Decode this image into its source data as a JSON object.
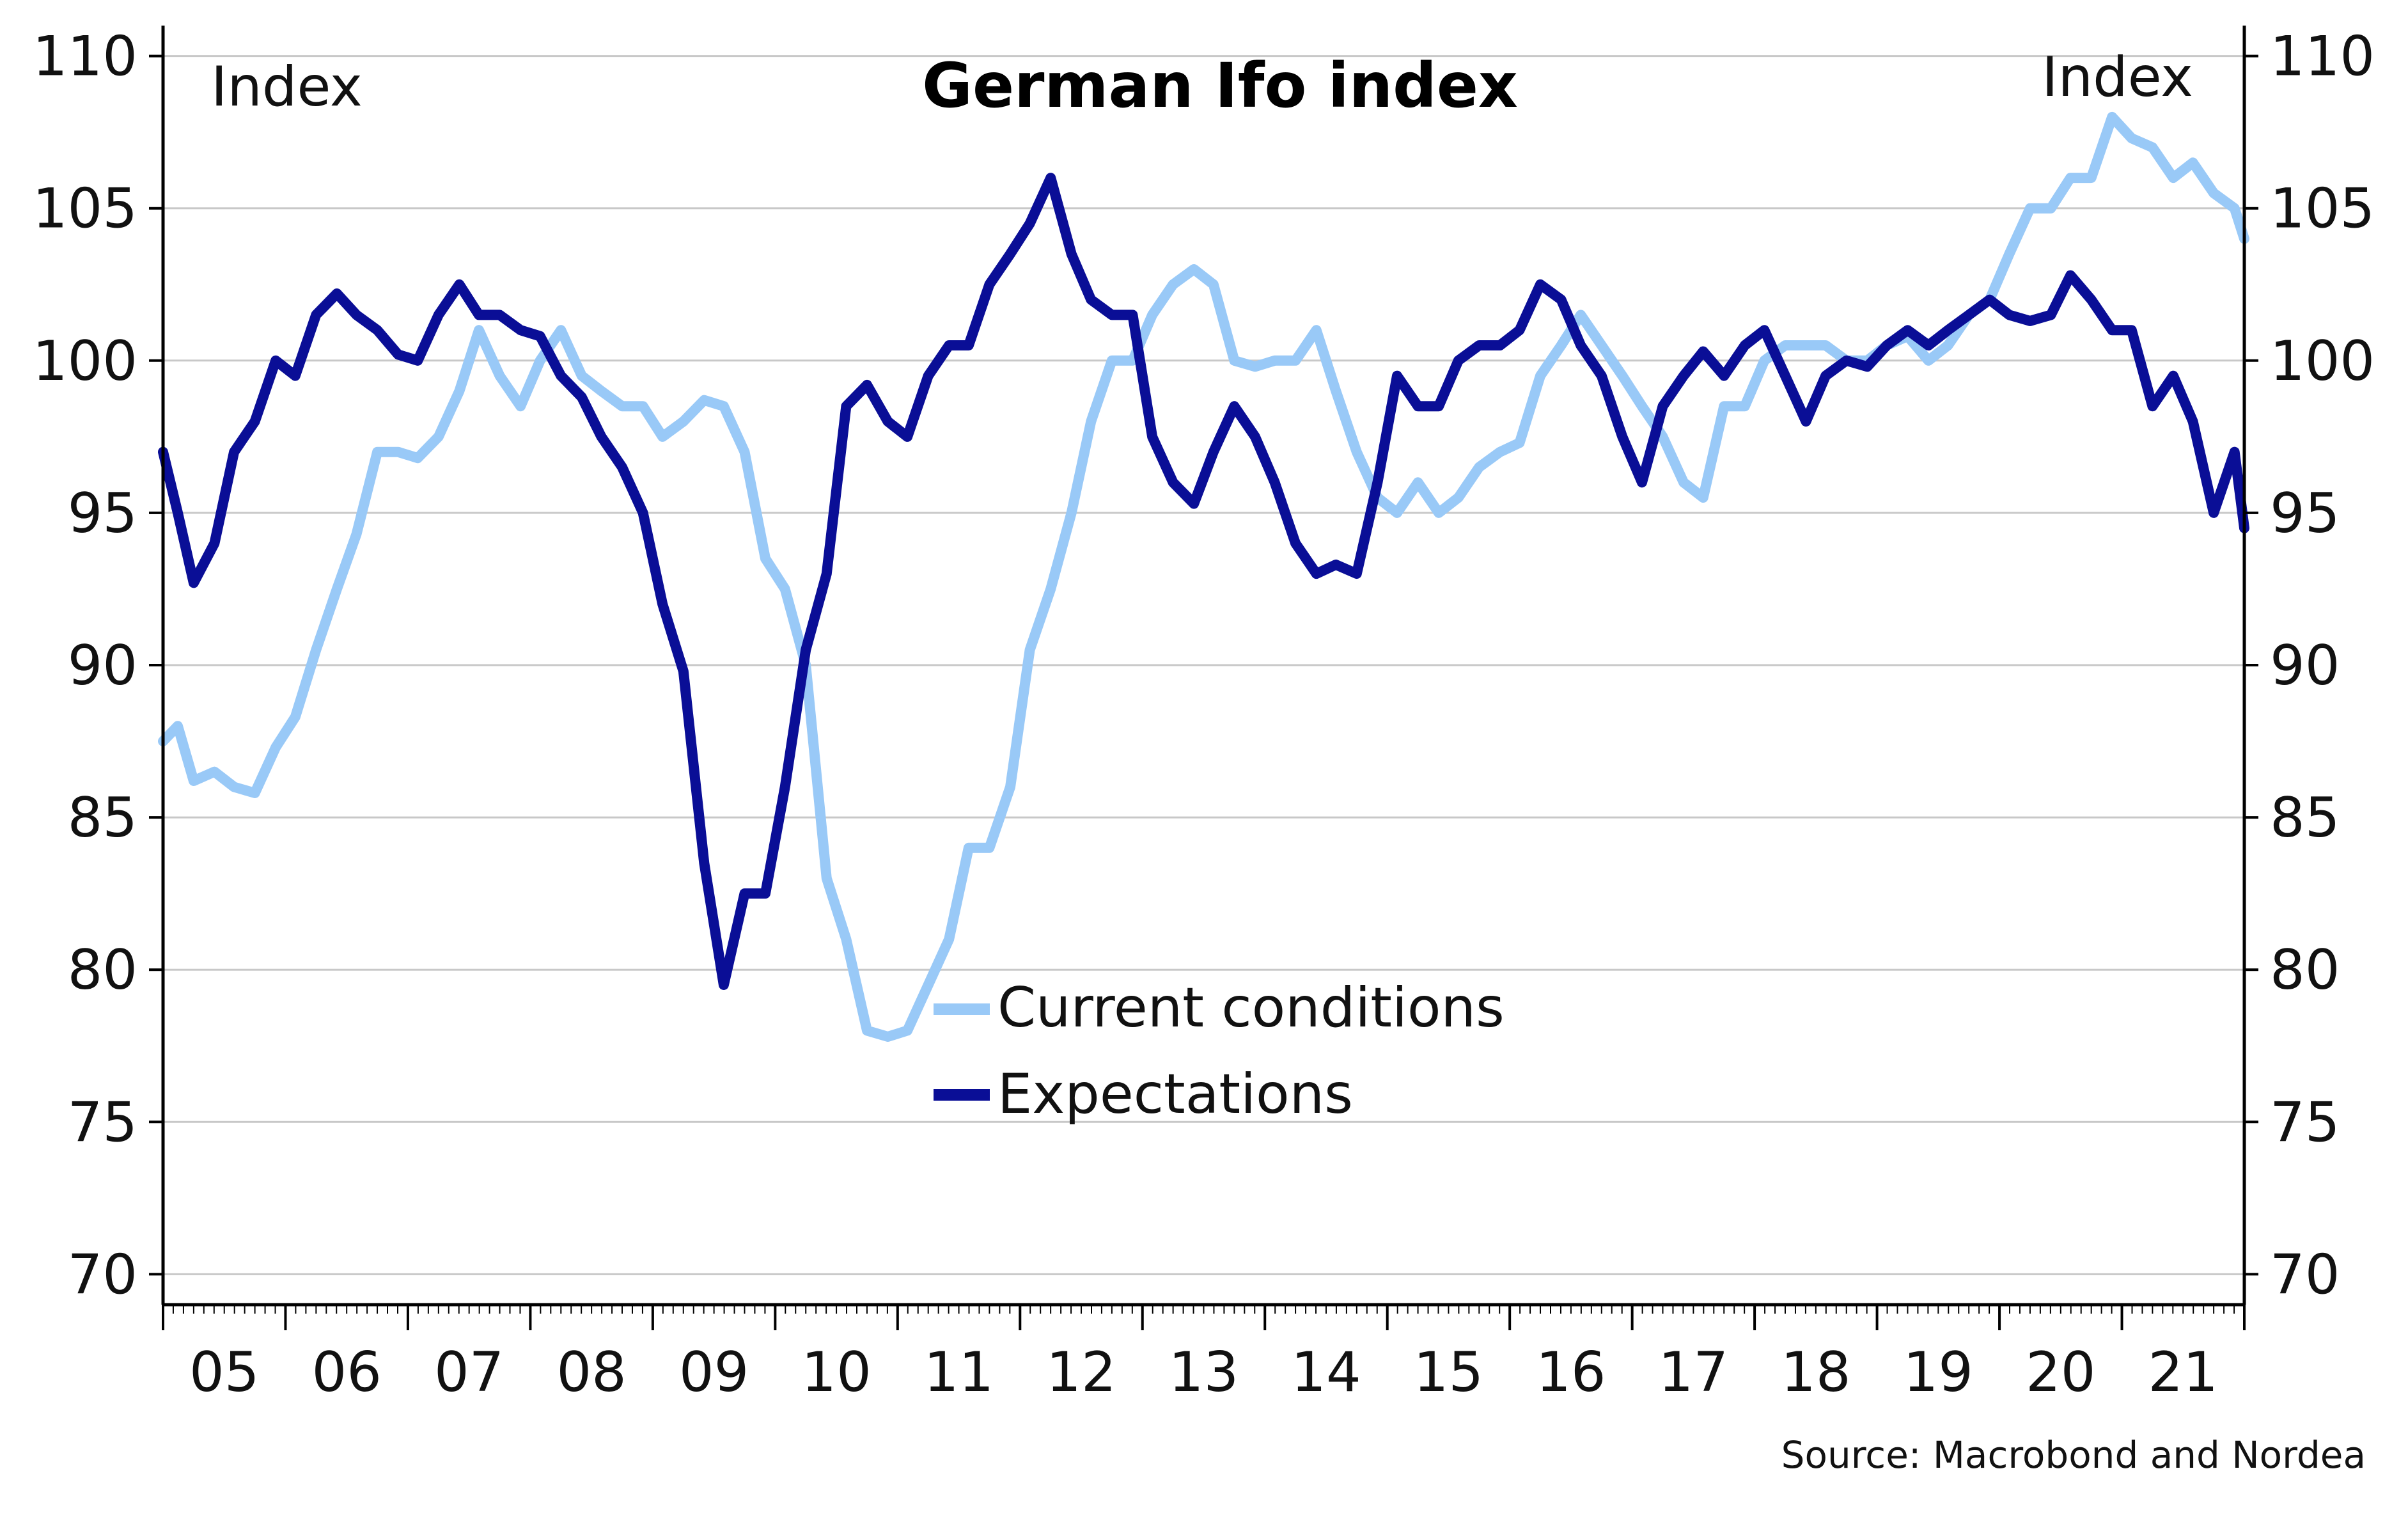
{
  "chart_data": {
    "type": "line",
    "title": "German Ifo index",
    "ylabel_left": "Index",
    "ylabel_right": "Index",
    "source": "Source: Macrobond and Nordea",
    "ylim": [
      69,
      111
    ],
    "yticks": [
      70,
      75,
      80,
      85,
      90,
      95,
      100,
      105,
      110
    ],
    "xlim": [
      2005.0,
      2022.0
    ],
    "x_tick_labels": [
      "05",
      "06",
      "07",
      "08",
      "09",
      "10",
      "11",
      "12",
      "13",
      "14",
      "15",
      "16",
      "17",
      "18",
      "19",
      "20",
      "21"
    ],
    "grid": "horizontal",
    "legend_position": "center-bottom",
    "series": [
      {
        "name": "Current conditions",
        "color": "#99c9f7",
        "points": [
          [
            2005.0,
            87.5
          ],
          [
            2005.12,
            88.0
          ],
          [
            2005.25,
            86.2
          ],
          [
            2005.42,
            86.5
          ],
          [
            2005.58,
            86.0
          ],
          [
            2005.75,
            85.8
          ],
          [
            2005.92,
            87.3
          ],
          [
            2006.08,
            88.3
          ],
          [
            2006.25,
            90.5
          ],
          [
            2006.42,
            92.5
          ],
          [
            2006.58,
            94.3
          ],
          [
            2006.75,
            97.0
          ],
          [
            2006.92,
            97.0
          ],
          [
            2007.08,
            96.8
          ],
          [
            2007.25,
            97.5
          ],
          [
            2007.42,
            99.0
          ],
          [
            2007.58,
            101.0
          ],
          [
            2007.75,
            99.5
          ],
          [
            2007.92,
            98.5
          ],
          [
            2008.08,
            100.0
          ],
          [
            2008.25,
            101.0
          ],
          [
            2008.42,
            99.5
          ],
          [
            2008.58,
            99.0
          ],
          [
            2008.75,
            98.5
          ],
          [
            2008.92,
            98.5
          ],
          [
            2009.08,
            97.5
          ],
          [
            2009.25,
            98.0
          ],
          [
            2009.42,
            98.7
          ],
          [
            2009.58,
            98.5
          ],
          [
            2009.75,
            97.0
          ],
          [
            2009.92,
            93.5
          ],
          [
            2010.08,
            92.5
          ],
          [
            2010.25,
            90.0
          ],
          [
            2010.42,
            83.0
          ],
          [
            2010.58,
            81.0
          ],
          [
            2010.75,
            78.0
          ],
          [
            2010.92,
            77.8
          ],
          [
            2011.08,
            78.0
          ],
          [
            2011.25,
            79.5
          ],
          [
            2011.42,
            81.0
          ],
          [
            2011.58,
            84.0
          ],
          [
            2011.75,
            84.0
          ],
          [
            2011.92,
            86.0
          ],
          [
            2012.08,
            90.5
          ],
          [
            2012.25,
            92.5
          ],
          [
            2012.42,
            95.0
          ],
          [
            2012.58,
            98.0
          ],
          [
            2012.75,
            100.0
          ],
          [
            2012.92,
            100.0
          ],
          [
            2013.08,
            101.5
          ],
          [
            2013.25,
            102.5
          ],
          [
            2013.42,
            103.0
          ],
          [
            2013.58,
            102.5
          ],
          [
            2013.75,
            100.0
          ],
          [
            2013.92,
            99.8
          ],
          [
            2014.08,
            100.0
          ],
          [
            2014.25,
            100.0
          ],
          [
            2014.42,
            101.0
          ],
          [
            2014.58,
            99.0
          ],
          [
            2014.75,
            97.0
          ],
          [
            2014.92,
            95.5
          ],
          [
            2015.08,
            95.0
          ],
          [
            2015.25,
            96.0
          ],
          [
            2015.42,
            95.0
          ],
          [
            2015.58,
            95.5
          ],
          [
            2015.75,
            96.5
          ],
          [
            2015.92,
            97.0
          ],
          [
            2016.08,
            97.3
          ],
          [
            2016.25,
            99.5
          ],
          [
            2016.42,
            100.5
          ],
          [
            2016.58,
            101.5
          ],
          [
            2016.75,
            100.5
          ],
          [
            2016.92,
            99.5
          ],
          [
            2017.08,
            98.5
          ],
          [
            2017.25,
            97.5
          ],
          [
            2017.42,
            96.0
          ],
          [
            2017.58,
            95.5
          ],
          [
            2017.75,
            98.5
          ],
          [
            2017.92,
            98.5
          ],
          [
            2018.08,
            100.0
          ],
          [
            2018.25,
            100.5
          ],
          [
            2018.42,
            100.5
          ],
          [
            2018.58,
            100.5
          ],
          [
            2018.75,
            100.0
          ],
          [
            2018.92,
            100.0
          ],
          [
            2019.08,
            100.5
          ],
          [
            2019.25,
            100.8
          ],
          [
            2019.42,
            100.0
          ],
          [
            2019.58,
            100.5
          ],
          [
            2019.75,
            101.5
          ],
          [
            2019.92,
            102.0
          ],
          [
            2020.08,
            103.5
          ],
          [
            2020.25,
            105.0
          ],
          [
            2020.42,
            105.0
          ],
          [
            2020.58,
            106.0
          ],
          [
            2020.75,
            106.0
          ],
          [
            2020.92,
            108.0
          ],
          [
            2021.08,
            107.3
          ],
          [
            2021.25,
            107.0
          ],
          [
            2021.42,
            106.0
          ],
          [
            2021.58,
            106.5
          ],
          [
            2021.75,
            105.5
          ],
          [
            2021.92,
            105.0
          ],
          [
            2022.0,
            104.0
          ]
        ]
      },
      {
        "name": "Expectations",
        "color": "#0a0e96",
        "points": [
          [
            2005.0,
            97.0
          ],
          [
            2005.12,
            95.0
          ],
          [
            2005.25,
            92.7
          ],
          [
            2005.42,
            94.0
          ],
          [
            2005.58,
            97.0
          ],
          [
            2005.75,
            98.0
          ],
          [
            2005.92,
            100.0
          ],
          [
            2006.08,
            99.5
          ],
          [
            2006.25,
            101.5
          ],
          [
            2006.42,
            102.2
          ],
          [
            2006.58,
            101.5
          ],
          [
            2006.75,
            101.0
          ],
          [
            2006.92,
            100.2
          ],
          [
            2007.08,
            100.0
          ],
          [
            2007.25,
            101.5
          ],
          [
            2007.42,
            102.5
          ],
          [
            2007.58,
            101.5
          ],
          [
            2007.75,
            101.5
          ],
          [
            2007.92,
            101.0
          ],
          [
            2008.08,
            100.8
          ],
          [
            2008.25,
            99.5
          ],
          [
            2008.42,
            98.8
          ],
          [
            2008.58,
            97.5
          ],
          [
            2008.75,
            96.5
          ],
          [
            2008.92,
            95.0
          ],
          [
            2009.08,
            92.0
          ],
          [
            2009.25,
            89.8
          ],
          [
            2009.42,
            83.5
          ],
          [
            2009.58,
            79.5
          ],
          [
            2009.75,
            82.5
          ],
          [
            2009.92,
            82.5
          ],
          [
            2010.08,
            86.0
          ],
          [
            2010.25,
            90.5
          ],
          [
            2010.42,
            93.0
          ],
          [
            2010.58,
            98.5
          ],
          [
            2010.75,
            99.2
          ],
          [
            2010.92,
            98.0
          ],
          [
            2011.08,
            97.5
          ],
          [
            2011.25,
            99.5
          ],
          [
            2011.42,
            100.5
          ],
          [
            2011.58,
            100.5
          ],
          [
            2011.75,
            102.5
          ],
          [
            2011.92,
            103.5
          ],
          [
            2012.08,
            104.5
          ],
          [
            2012.25,
            106.0
          ],
          [
            2012.42,
            103.5
          ],
          [
            2012.58,
            102.0
          ],
          [
            2012.75,
            101.5
          ],
          [
            2012.92,
            101.5
          ],
          [
            2013.08,
            97.5
          ],
          [
            2013.25,
            96.0
          ],
          [
            2013.42,
            95.3
          ],
          [
            2013.58,
            97.0
          ],
          [
            2013.75,
            98.5
          ],
          [
            2013.92,
            97.5
          ],
          [
            2014.08,
            96.0
          ],
          [
            2014.25,
            94.0
          ],
          [
            2014.42,
            93.0
          ],
          [
            2014.58,
            93.3
          ],
          [
            2014.75,
            93.0
          ],
          [
            2014.92,
            96.0
          ],
          [
            2015.08,
            99.5
          ],
          [
            2015.25,
            98.5
          ],
          [
            2015.42,
            98.5
          ],
          [
            2015.58,
            100.0
          ],
          [
            2015.75,
            100.5
          ],
          [
            2015.92,
            100.5
          ],
          [
            2016.08,
            101.0
          ],
          [
            2016.25,
            102.5
          ],
          [
            2016.42,
            102.0
          ],
          [
            2016.58,
            100.5
          ],
          [
            2016.75,
            99.5
          ],
          [
            2016.92,
            97.5
          ],
          [
            2017.08,
            96.0
          ],
          [
            2017.25,
            98.5
          ],
          [
            2017.42,
            99.5
          ],
          [
            2017.58,
            100.3
          ],
          [
            2017.75,
            99.5
          ],
          [
            2017.92,
            100.5
          ],
          [
            2018.08,
            101.0
          ],
          [
            2018.25,
            99.5
          ],
          [
            2018.42,
            98.0
          ],
          [
            2018.58,
            99.5
          ],
          [
            2018.75,
            100.0
          ],
          [
            2018.92,
            99.8
          ],
          [
            2019.08,
            100.5
          ],
          [
            2019.25,
            101.0
          ],
          [
            2019.42,
            100.5
          ],
          [
            2019.58,
            101.0
          ],
          [
            2019.75,
            101.5
          ],
          [
            2019.92,
            102.0
          ],
          [
            2020.08,
            101.5
          ],
          [
            2020.25,
            101.3
          ],
          [
            2020.42,
            101.5
          ],
          [
            2020.58,
            102.8
          ],
          [
            2020.75,
            102.0
          ],
          [
            2020.92,
            101.0
          ],
          [
            2021.08,
            101.0
          ],
          [
            2021.25,
            98.5
          ],
          [
            2021.42,
            99.5
          ],
          [
            2021.58,
            98.0
          ],
          [
            2021.75,
            95.0
          ],
          [
            2021.92,
            97.0
          ],
          [
            2022.0,
            94.5
          ]
        ]
      }
    ]
  }
}
